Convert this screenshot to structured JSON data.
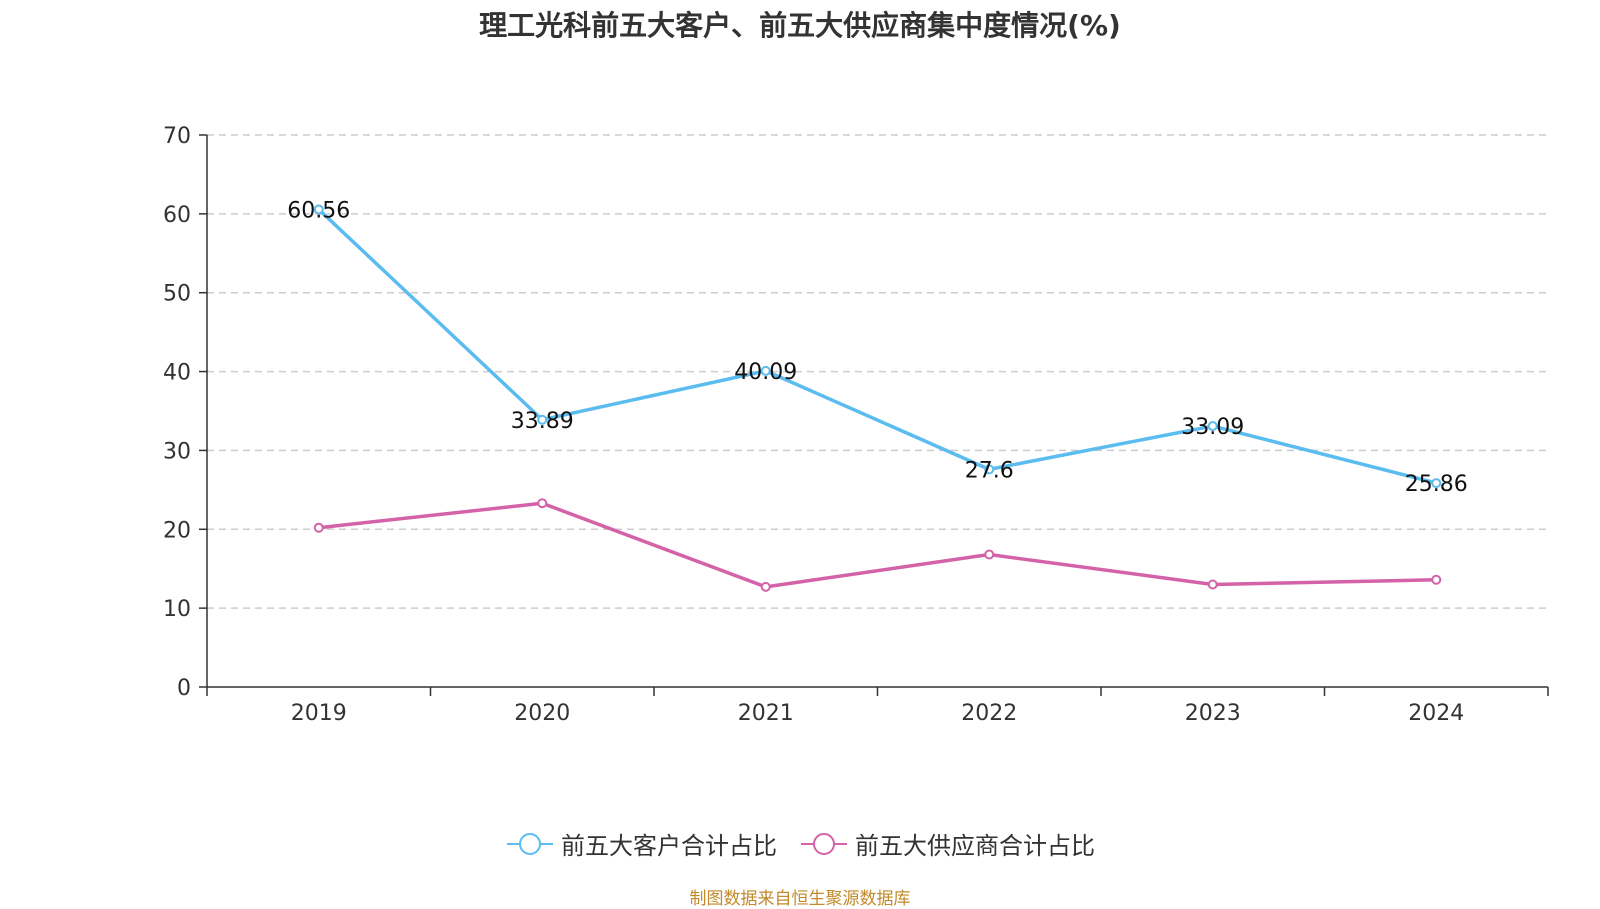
{
  "chart_data": {
    "type": "line",
    "title": "理工光科前五大客户、前五大供应商集中度情况(%)",
    "categories": [
      "2019",
      "2020",
      "2021",
      "2022",
      "2023",
      "2024"
    ],
    "ylim": [
      0,
      70
    ],
    "yticks": [
      0,
      10,
      20,
      30,
      40,
      50,
      60,
      70
    ],
    "grid": true,
    "legend_position": "bottom",
    "series": [
      {
        "name": "前五大客户合计占比",
        "values": [
          60.56,
          33.89,
          40.09,
          27.6,
          33.09,
          25.86
        ],
        "labels": [
          "60.56",
          "33.89",
          "40.09",
          "27.6",
          "33.09",
          "25.86"
        ],
        "color": "#5bbcf0"
      },
      {
        "name": "前五大供应商合计占比",
        "values": [
          20.2,
          23.3,
          12.7,
          16.8,
          13.0,
          13.6
        ],
        "color": "#d462a8"
      }
    ]
  },
  "footer": {
    "source": "制图数据来自恒生聚源数据库"
  }
}
